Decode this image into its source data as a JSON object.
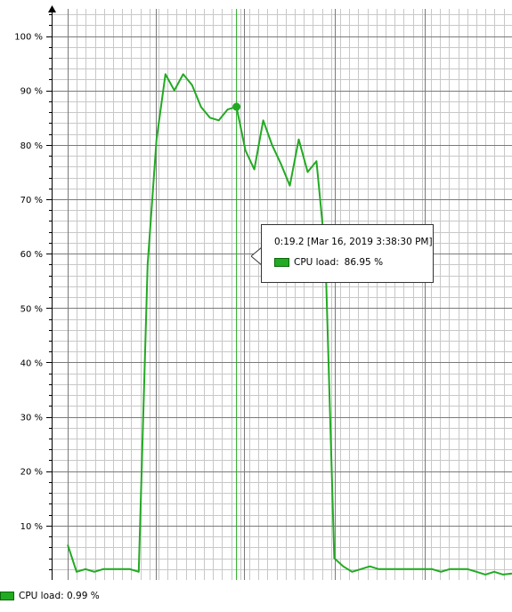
{
  "chart_data": {
    "type": "line",
    "ylim": [
      0,
      105
    ],
    "y_ticks": [
      {
        "value": 10,
        "label": "10 %"
      },
      {
        "value": 20,
        "label": "20 %"
      },
      {
        "value": 30,
        "label": "30 %"
      },
      {
        "value": 40,
        "label": "40 %"
      },
      {
        "value": 50,
        "label": "50 %"
      },
      {
        "value": 60,
        "label": "60 %"
      },
      {
        "value": 70,
        "label": "70 %"
      },
      {
        "value": 80,
        "label": "80 %"
      },
      {
        "value": 90,
        "label": "90 %"
      },
      {
        "value": 100,
        "label": "100 %"
      }
    ],
    "grid": true,
    "series": [
      {
        "name": "CPU load",
        "color": "#22aa22",
        "x": [
          0,
          1,
          2,
          3,
          4,
          5,
          6,
          7,
          8,
          9,
          10,
          11,
          12,
          13,
          14,
          15,
          16,
          17,
          18,
          19,
          20,
          21,
          22,
          23,
          24,
          25,
          26,
          27,
          28,
          29,
          30,
          31,
          32,
          33,
          34,
          35,
          36,
          37,
          38,
          39,
          40,
          41,
          42,
          43,
          44,
          45,
          46,
          47,
          48,
          49,
          50
        ],
        "values": [
          6.5,
          1.5,
          2,
          1.5,
          2,
          2,
          2,
          2,
          1.5,
          58,
          81,
          93,
          90,
          93,
          91,
          87,
          85,
          84.5,
          86.5,
          87,
          79,
          75.5,
          84.5,
          80,
          76.5,
          72.5,
          81,
          75,
          77,
          60,
          4,
          2.5,
          1.5,
          2,
          2.5,
          2,
          2,
          2,
          2,
          2,
          2,
          2,
          1.5,
          2,
          2,
          2,
          1.5,
          1,
          1.5,
          1,
          1.2
        ]
      }
    ],
    "x_range": [
      0,
      50
    ],
    "hover_index": 19
  },
  "tooltip": {
    "time": "0:19.2 [Mar 16, 2019 3:38:30 PM]",
    "series_label": "CPU load:",
    "series_value": "86.95 %"
  },
  "legend": {
    "label": "CPU load: 0.99 %"
  }
}
